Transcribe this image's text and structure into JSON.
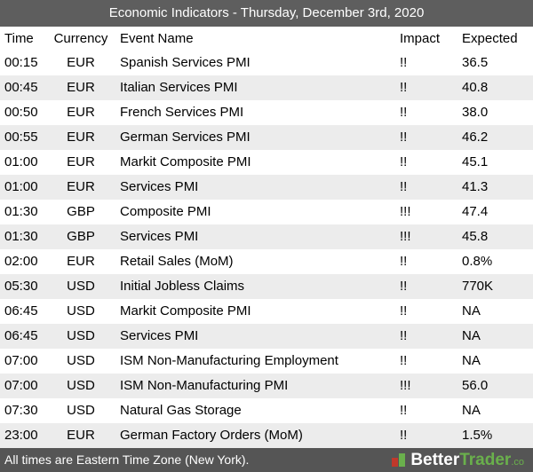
{
  "header": {
    "title": "Economic Indicators - Thursday, December 3rd, 2020"
  },
  "table": {
    "columns": [
      "Time",
      "Currency",
      "Event Name",
      "Impact",
      "Expected"
    ],
    "rows": [
      [
        "00:15",
        "EUR",
        "Spanish Services PMI",
        "!!",
        "36.5"
      ],
      [
        "00:45",
        "EUR",
        "Italian Services PMI",
        "!!",
        "40.8"
      ],
      [
        "00:50",
        "EUR",
        "French Services PMI",
        "!!",
        "38.0"
      ],
      [
        "00:55",
        "EUR",
        "German Services PMI",
        "!!",
        "46.2"
      ],
      [
        "01:00",
        "EUR",
        "Markit Composite PMI",
        "!!",
        "45.1"
      ],
      [
        "01:00",
        "EUR",
        "Services PMI",
        "!!",
        "41.3"
      ],
      [
        "01:30",
        "GBP",
        "Composite PMI",
        "!!!",
        "47.4"
      ],
      [
        "01:30",
        "GBP",
        "Services PMI",
        "!!!",
        "45.8"
      ],
      [
        "02:00",
        "EUR",
        "Retail Sales (MoM)",
        "!!",
        "0.8%"
      ],
      [
        "05:30",
        "USD",
        "Initial Jobless Claims",
        "!!",
        "770K"
      ],
      [
        "06:45",
        "USD",
        "Markit Composite PMI",
        "!!",
        "NA"
      ],
      [
        "06:45",
        "USD",
        "Services PMI",
        "!!",
        "NA"
      ],
      [
        "07:00",
        "USD",
        "ISM Non-Manufacturing Employment",
        "!!",
        "NA"
      ],
      [
        "07:00",
        "USD",
        "ISM Non-Manufacturing PMI",
        "!!!",
        "56.0"
      ],
      [
        "07:30",
        "USD",
        "Natural Gas Storage",
        "!!",
        "NA"
      ],
      [
        "23:00",
        "EUR",
        "German Factory Orders (MoM)",
        "!!",
        "1.5%"
      ]
    ]
  },
  "footer": {
    "note": "All times are Eastern Time Zone (New York).",
    "logo": {
      "part1": "Better",
      "part2": "Trader",
      "suffix": ".co"
    }
  }
}
